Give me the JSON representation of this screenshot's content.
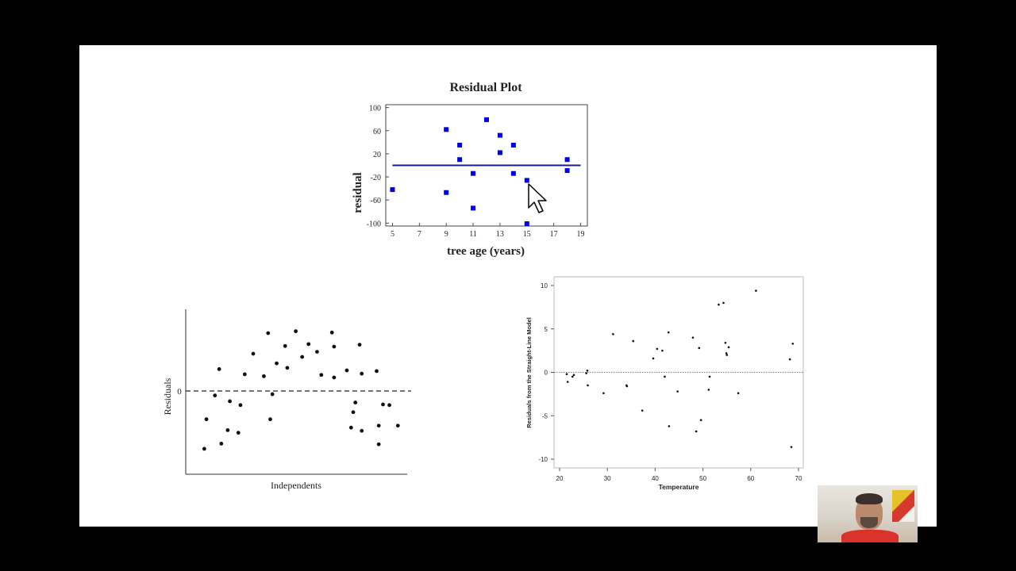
{
  "chart_data": [
    {
      "type": "scatter",
      "title": "Residual Plot",
      "xlabel": "tree age (years)",
      "ylabel": "residual",
      "xlim": [
        4.5,
        19.5
      ],
      "ylim": [
        -105,
        105
      ],
      "xticks": [
        5,
        7,
        9,
        11,
        13,
        15,
        17,
        19
      ],
      "yticks": [
        100,
        60,
        20,
        -20,
        -60,
        -100
      ],
      "xtick_labels": [
        "5",
        "7",
        "9",
        "11",
        "13",
        "15",
        "17",
        "19"
      ],
      "ytick_labels": [
        "100",
        "60",
        "20",
        "-20",
        "-60",
        "-100"
      ],
      "reference_line": {
        "y": 0,
        "color": "#1a1a8c"
      },
      "marker_color": "#0000dd",
      "points": [
        {
          "x": 5,
          "y": -42
        },
        {
          "x": 9,
          "y": 62
        },
        {
          "x": 9,
          "y": -47
        },
        {
          "x": 10,
          "y": 35
        },
        {
          "x": 10,
          "y": 10
        },
        {
          "x": 11,
          "y": -14
        },
        {
          "x": 11,
          "y": -74
        },
        {
          "x": 12,
          "y": 79
        },
        {
          "x": 13,
          "y": 52
        },
        {
          "x": 13,
          "y": 22
        },
        {
          "x": 14,
          "y": 35
        },
        {
          "x": 14,
          "y": -14
        },
        {
          "x": 15,
          "y": -26
        },
        {
          "x": 15,
          "y": -101
        },
        {
          "x": 18,
          "y": 10
        },
        {
          "x": 18,
          "y": -9
        }
      ],
      "grid": false
    },
    {
      "type": "scatter",
      "title": "",
      "xlabel": "Independents",
      "ylabel": "Residuals",
      "zero_label": "0",
      "ylim": [
        -10,
        10
      ],
      "xlim": [
        0,
        10
      ],
      "reference_line": {
        "y": 0,
        "style": "dashed"
      },
      "points": [
        {
          "x": 0.5,
          "y": -9
        },
        {
          "x": 0.6,
          "y": -4.4
        },
        {
          "x": 1.0,
          "y": -0.7
        },
        {
          "x": 1.2,
          "y": 3.4
        },
        {
          "x": 1.3,
          "y": -8.2
        },
        {
          "x": 1.6,
          "y": -6.1
        },
        {
          "x": 1.7,
          "y": -1.6
        },
        {
          "x": 2.1,
          "y": -6.5
        },
        {
          "x": 2.2,
          "y": -2.2
        },
        {
          "x": 2.4,
          "y": 2.6
        },
        {
          "x": 2.8,
          "y": 5.8
        },
        {
          "x": 3.3,
          "y": 2.3
        },
        {
          "x": 3.5,
          "y": 9.0
        },
        {
          "x": 3.6,
          "y": -4.4
        },
        {
          "x": 3.7,
          "y": -0.5
        },
        {
          "x": 3.9,
          "y": 4.3
        },
        {
          "x": 4.3,
          "y": 7.0
        },
        {
          "x": 4.4,
          "y": 3.6
        },
        {
          "x": 4.8,
          "y": 9.3
        },
        {
          "x": 5.1,
          "y": 5.3
        },
        {
          "x": 5.4,
          "y": 7.3
        },
        {
          "x": 5.8,
          "y": 6.1
        },
        {
          "x": 6.0,
          "y": 2.5
        },
        {
          "x": 6.5,
          "y": 9.1
        },
        {
          "x": 6.6,
          "y": 2.1
        },
        {
          "x": 6.6,
          "y": 6.9
        },
        {
          "x": 7.2,
          "y": 3.2
        },
        {
          "x": 7.4,
          "y": -5.7
        },
        {
          "x": 7.5,
          "y": -3.3
        },
        {
          "x": 7.6,
          "y": -1.8
        },
        {
          "x": 7.8,
          "y": 7.2
        },
        {
          "x": 7.9,
          "y": 2.7
        },
        {
          "x": 7.9,
          "y": -6.2
        },
        {
          "x": 8.6,
          "y": 3.1
        },
        {
          "x": 8.7,
          "y": -8.3
        },
        {
          "x": 8.7,
          "y": -5.4
        },
        {
          "x": 8.9,
          "y": -2.1
        },
        {
          "x": 9.2,
          "y": -2.2
        },
        {
          "x": 9.6,
          "y": -5.4
        }
      ]
    },
    {
      "type": "scatter",
      "title": "",
      "xlabel": "Temperature",
      "ylabel": "Residuals from the Straight-Line Model",
      "xlim": [
        19,
        72
      ],
      "ylim": [
        -11,
        11
      ],
      "xticks": [
        20,
        30,
        40,
        50,
        60,
        70
      ],
      "yticks": [
        10,
        5,
        0,
        -5,
        -10
      ],
      "xtick_labels": [
        "20",
        "30",
        "40",
        "50",
        "60",
        "70"
      ],
      "ytick_labels": [
        "10",
        "5",
        "0",
        "-5",
        "-10"
      ],
      "reference_line": {
        "y": 0,
        "style": "dotted"
      },
      "points": [
        {
          "x": 21.5,
          "y": -0.2
        },
        {
          "x": 21.7,
          "y": -1.1
        },
        {
          "x": 22.7,
          "y": -0.5
        },
        {
          "x": 23.0,
          "y": -0.3
        },
        {
          "x": 25.6,
          "y": -0.1
        },
        {
          "x": 25.8,
          "y": 0.2
        },
        {
          "x": 25.9,
          "y": -1.5
        },
        {
          "x": 29.2,
          "y": -2.4
        },
        {
          "x": 31.2,
          "y": 4.4
        },
        {
          "x": 34.0,
          "y": -1.5
        },
        {
          "x": 34.1,
          "y": -1.6
        },
        {
          "x": 35.4,
          "y": 3.6
        },
        {
          "x": 37.3,
          "y": -4.4
        },
        {
          "x": 39.6,
          "y": 1.6
        },
        {
          "x": 40.4,
          "y": 2.7
        },
        {
          "x": 41.5,
          "y": 2.5
        },
        {
          "x": 42.0,
          "y": -0.5
        },
        {
          "x": 42.8,
          "y": 4.6
        },
        {
          "x": 42.9,
          "y": -6.2
        },
        {
          "x": 44.7,
          "y": -2.2
        },
        {
          "x": 47.9,
          "y": 4.0
        },
        {
          "x": 48.6,
          "y": -6.8
        },
        {
          "x": 49.2,
          "y": 2.8
        },
        {
          "x": 49.6,
          "y": -5.5
        },
        {
          "x": 51.2,
          "y": -2.0
        },
        {
          "x": 51.4,
          "y": -0.5
        },
        {
          "x": 53.3,
          "y": 7.8
        },
        {
          "x": 54.3,
          "y": 8.0
        },
        {
          "x": 54.7,
          "y": 3.4
        },
        {
          "x": 54.9,
          "y": 2.2
        },
        {
          "x": 55.0,
          "y": 2.0
        },
        {
          "x": 55.4,
          "y": 2.9
        },
        {
          "x": 57.4,
          "y": -2.4
        },
        {
          "x": 61.1,
          "y": 9.4
        },
        {
          "x": 68.2,
          "y": 1.5
        },
        {
          "x": 68.5,
          "y": -8.6
        },
        {
          "x": 68.8,
          "y": 3.3
        }
      ]
    }
  ]
}
